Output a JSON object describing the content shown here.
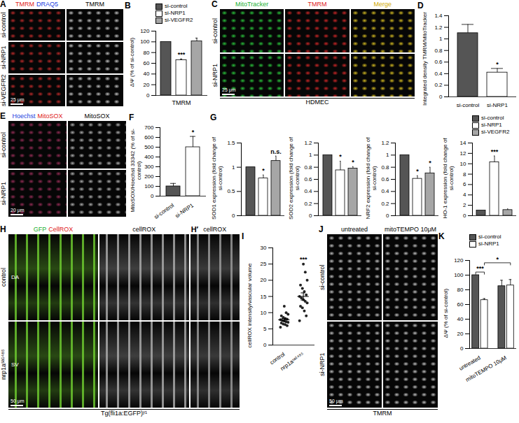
{
  "chart_data": [
    {
      "panel_label": "B",
      "type": "bar",
      "categories": [
        "si-control",
        "si-NRP1",
        "si-VEGFR2"
      ],
      "values": [
        100,
        66,
        101
      ],
      "errors": [
        0,
        2,
        6
      ],
      "colors": [
        "#555555",
        "#ffffff",
        "#a6a6a6"
      ],
      "ylim": [
        0,
        120
      ],
      "yticks": [
        0,
        20,
        40,
        60,
        80,
        100,
        120
      ],
      "y_label": "ΔΨ (% of si-control)",
      "x_label": "TMRM",
      "tick_labels": "y",
      "legend": "top",
      "annotations": [
        {
          "category": "si-NRP1",
          "text": "***"
        }
      ]
    },
    {
      "panel_label": "D",
      "type": "bar",
      "categories": [
        "si-control",
        "si-NRP1"
      ],
      "values": [
        1.1,
        0.42
      ],
      "errors": [
        0.15,
        0.07
      ],
      "colors": [
        "#555555",
        "#ffffff"
      ],
      "ylim": [
        0,
        1.4
      ],
      "yticks": [
        0,
        0.2,
        0.4,
        0.6,
        0.8,
        1,
        1.2,
        1.4
      ],
      "y_label": "Integrated density TMRM/MitoTracker",
      "annotations": [
        {
          "category": "si-NRP1",
          "text": "*"
        }
      ]
    },
    {
      "panel_label": "F",
      "type": "bar",
      "categories": [
        "si-control",
        "si-NRP1"
      ],
      "values": [
        100,
        500
      ],
      "errors": [
        30,
        110
      ],
      "colors": [
        "#555555",
        "#ffffff"
      ],
      "ylim": [
        0,
        700
      ],
      "yticks": [
        0,
        100,
        200,
        300,
        400,
        500,
        600,
        700
      ],
      "y_label": "MitoSOX/Hoechst 33342 (% of si-control)",
      "annotations": [
        {
          "category": "si-NRP1",
          "text": "*"
        }
      ]
    },
    {
      "panel_label": "G",
      "type": "bar",
      "categories": [
        "si-control",
        "si-NRP1",
        "si-VEGFR2"
      ],
      "values": [
        1,
        0.77,
        1.13
      ],
      "errors": [
        0,
        0.07,
        0.1
      ],
      "colors": [
        "#555555",
        "#ffffff",
        "#a6a6a6"
      ],
      "ylim": [
        0,
        1.5
      ],
      "yticks": [
        0,
        0.5,
        1,
        1.5
      ],
      "y_label": "SOD1 expression (fold change of si-control)",
      "tick_labels": "y",
      "annotations": [
        {
          "category": "si-NRP1",
          "text": "*"
        },
        {
          "category": "si-VEGFR2",
          "text": "n.s."
        }
      ]
    },
    {
      "type": "bar",
      "categories": [
        "si-control",
        "si-NRP1",
        "si-VEGFR2"
      ],
      "values": [
        1,
        0.75,
        0.78
      ],
      "errors": [
        0,
        0.15,
        0.03
      ],
      "colors": [
        "#555555",
        "#ffffff",
        "#a6a6a6"
      ],
      "ylim": [
        0,
        1.2
      ],
      "yticks": [
        0,
        0.2,
        0.4,
        0.6,
        0.8,
        1,
        1.2
      ],
      "y_label": "SOD2 expression (fold change of si-control)",
      "tick_labels": "y",
      "annotations": [
        {
          "category": "si-NRP1",
          "text": "*"
        },
        {
          "category": "si-VEGFR2",
          "text": "*"
        }
      ]
    },
    {
      "type": "bar",
      "categories": [
        "si-control",
        "si-NRP1",
        "si-VEGFR2"
      ],
      "values": [
        1,
        0.61,
        0.7
      ],
      "errors": [
        0,
        0.05,
        0.1
      ],
      "colors": [
        "#555555",
        "#ffffff",
        "#a6a6a6"
      ],
      "ylim": [
        0,
        1.2
      ],
      "yticks": [
        0,
        0.2,
        0.4,
        0.6,
        0.8,
        1,
        1.2
      ],
      "y_label": "NRF2 expression (fold change of si-control)",
      "tick_labels": "y",
      "annotations": [
        {
          "category": "si-NRP1",
          "text": "*"
        },
        {
          "category": "si-VEGFR2",
          "text": "*"
        }
      ]
    },
    {
      "type": "bar",
      "categories": [
        "si-control",
        "si-NRP1",
        "si-VEGFR2"
      ],
      "values": [
        1,
        10.3,
        1.1
      ],
      "errors": [
        0,
        1.2,
        0.2
      ],
      "colors": [
        "#555555",
        "#ffffff",
        "#a6a6a6"
      ],
      "ylim": [
        0,
        14
      ],
      "yticks": [
        0,
        2,
        4,
        6,
        8,
        10,
        12,
        14
      ],
      "y_label": "HO-1 expression (fold change of si-control)",
      "tick_labels": "y",
      "legend": "top",
      "annotations": [
        {
          "category": "si-NRP1",
          "text": "***"
        }
      ]
    },
    {
      "panel_label": "I",
      "type": "scatter",
      "categories": [
        "control",
        "nrp1aˢᵃ¹⁴⁸⁵"
      ],
      "values": [
        [
          5.5,
          6,
          6.3,
          6.5,
          6.8,
          7,
          7.2,
          7.4,
          7.6,
          7.8,
          8,
          8.2,
          8.5,
          9,
          9.5,
          10,
          12
        ],
        [
          7.5,
          9,
          10.5,
          11.5,
          12,
          13,
          13.5,
          14,
          14.5,
          15,
          15.5,
          16.5,
          17.5,
          18.5,
          20,
          22.5,
          25
        ]
      ],
      "means": [
        7.8,
        15
      ],
      "errors": [
        0.4,
        1.1
      ],
      "color": "#222222",
      "ylim": [
        0,
        30
      ],
      "yticks": [
        0,
        5,
        10,
        15,
        20,
        25,
        30
      ],
      "y_label": "cellROX intensity/vascular volume",
      "annotations": [
        {
          "category": "nrp1aˢᵃ¹⁴⁸⁵",
          "text": "***"
        }
      ]
    },
    {
      "panel_label": "K",
      "type": "bar",
      "categories": [
        "untreated",
        "mitoTEMPO 10μM"
      ],
      "series": [
        {
          "name": "si-control",
          "color": "#555555",
          "values": [
            100,
            85
          ],
          "errors": [
            0,
            8
          ]
        },
        {
          "name": "si-NRP1",
          "color": "#ffffff",
          "values": [
            66,
            86
          ],
          "errors": [
            2,
            8
          ]
        }
      ],
      "ylim": [
        0,
        120
      ],
      "yticks": [
        0,
        20,
        40,
        60,
        80,
        100,
        120
      ],
      "y_label": "ΔΨ (% of si-control)",
      "legend": "top",
      "annotations": [
        {
          "category": "untreated",
          "text": "***"
        },
        {
          "series": "si-NRP1",
          "text": "*"
        }
      ]
    }
  ],
  "images": [
    {
      "panel_label": "A",
      "columns": [
        {
          "header": [
            {
              "text": "TMRM",
              "color": "#e02020"
            },
            {
              "text": "DRAQ5",
              "color": "#2040e0"
            }
          ],
          "color": "#b02828"
        },
        {
          "header": [
            {
              "text": "TMRM",
              "color": "#000000"
            }
          ],
          "color": "#b8b8b8"
        }
      ],
      "rows": [
        "si-control",
        "si-NRP1",
        "si-VEGFR2"
      ],
      "scale_bar": "25 μm"
    },
    {
      "panel_label": "C",
      "columns": [
        {
          "header": [
            {
              "text": "MitoTracker",
              "color": "#20b030"
            }
          ],
          "color": "#28b838"
        },
        {
          "header": [
            {
              "text": "TMRM",
              "color": "#e02020"
            }
          ],
          "color": "#c02424"
        },
        {
          "header": [
            {
              "text": "Merge",
              "color": "#d0a800"
            }
          ],
          "color": "#c8b020"
        }
      ],
      "rows": [
        "si-control",
        "si-NRP1"
      ],
      "scale_bar": "25 μm",
      "caption": "HDMEC"
    },
    {
      "panel_label": "E",
      "columns": [
        {
          "header": [
            {
              "text": "Hoechst",
              "color": "#2040e0"
            },
            {
              "text": "MitoSOX",
              "color": "#e02020"
            }
          ],
          "color": "#8a2a50"
        },
        {
          "header": [
            {
              "text": "MitoSOX",
              "color": "#000000"
            }
          ],
          "color": "#a8a8a8"
        }
      ],
      "rows": [
        "si-control",
        "si-NRP1"
      ],
      "scale_bar": "20 μm"
    },
    {
      "panel_label": "H",
      "columns": [
        {
          "header": [
            {
              "text": "GFP",
              "color": "#20b030"
            },
            {
              "text": "CellROX",
              "color": "#e02020"
            }
          ],
          "color": "#70d030"
        },
        {
          "header": [
            {
              "text": "cellROX",
              "color": "#000000"
            }
          ],
          "color": "#b0b0b0"
        },
        {
          "panel_label": "H′",
          "header": [
            {
              "text": "cellROX",
              "color": "#000000"
            }
          ],
          "color": "#a0a0a0"
        }
      ],
      "rows": [
        "control",
        "nrp1aˢᵃ¹⁴⁸⁵"
      ],
      "scale_bar": "50 μm",
      "caption": "Tg(fli1a:EGFP)ʸ¹",
      "annotations": [
        {
          "text": "DA",
          "row": 0,
          "column": 0
        },
        {
          "text": "SV",
          "row": 1,
          "column": 0
        }
      ]
    },
    {
      "panel_label": "J",
      "columns": [
        {
          "header": [
            {
              "text": "untreated",
              "color": "#000000"
            }
          ],
          "color": "#b8b8b8"
        },
        {
          "header": [
            {
              "text": "mitoTEMPO 10μM",
              "color": "#000000"
            }
          ],
          "color": "#b8b8b8"
        }
      ],
      "rows": [
        "si-control",
        "si-NRP1"
      ],
      "scale_bar": "50 μm",
      "caption": "TMRM"
    }
  ]
}
